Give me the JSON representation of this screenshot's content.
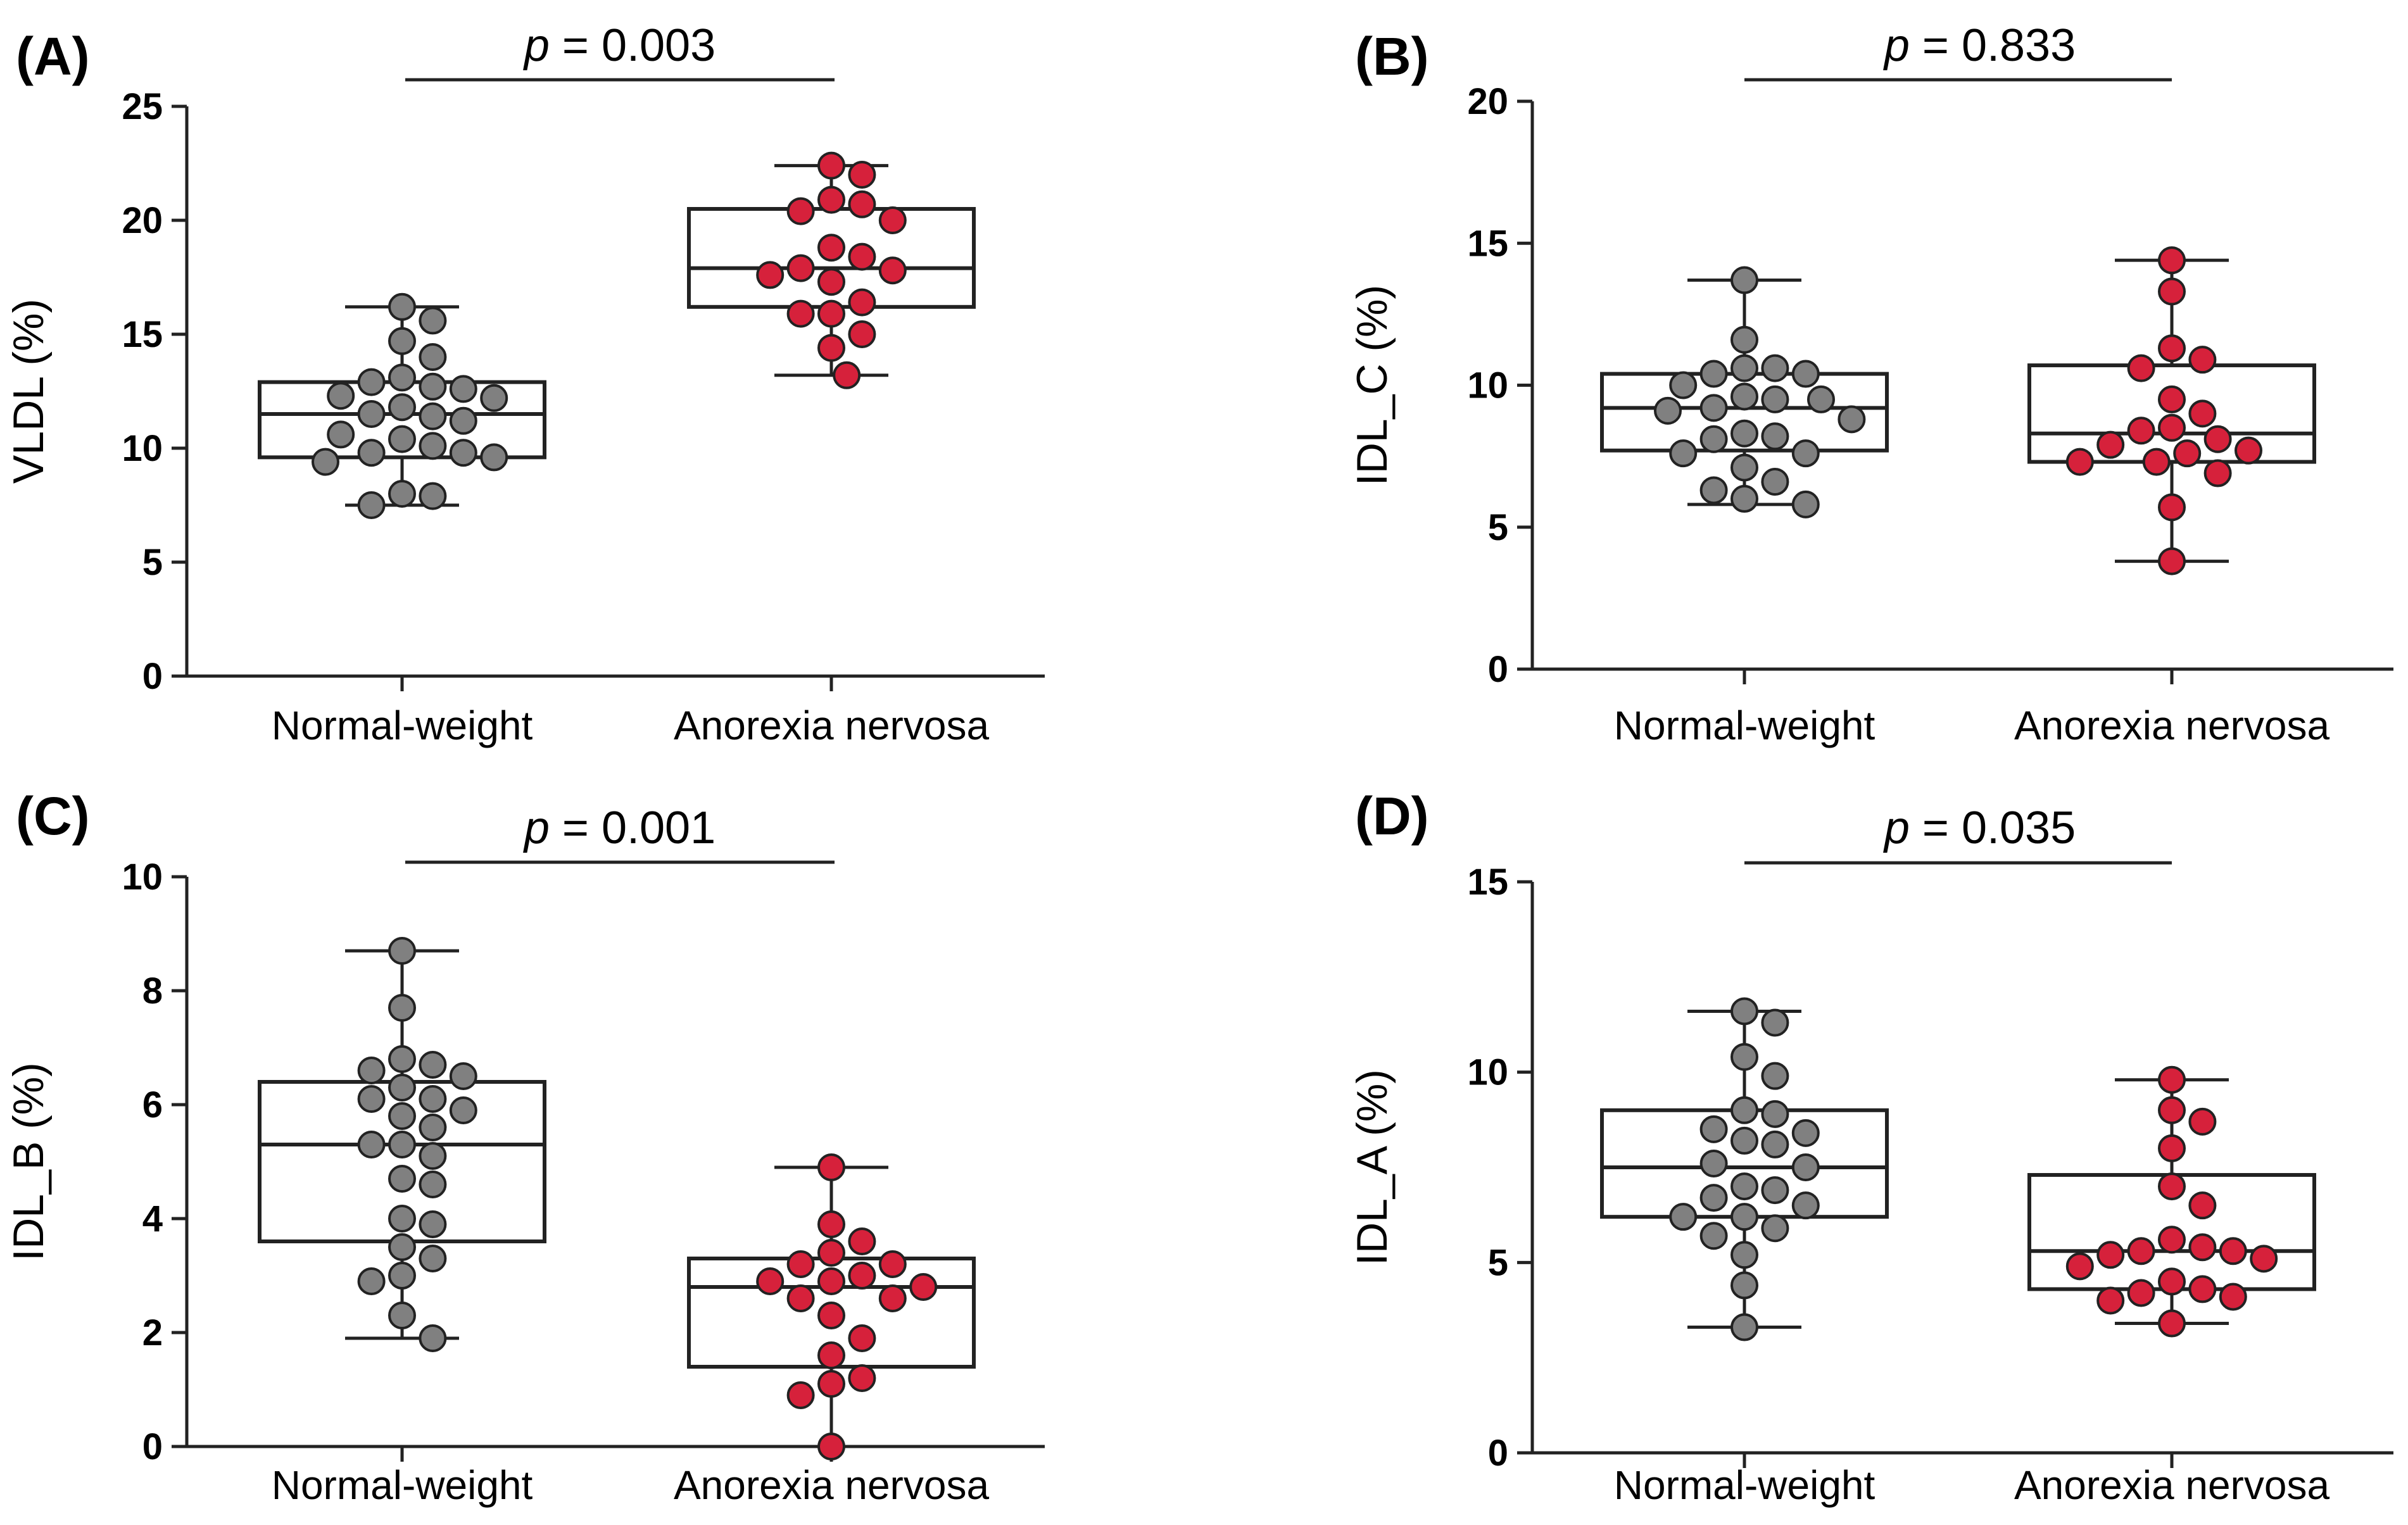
{
  "chart_data": [
    {
      "panel": "(A)",
      "type": "box",
      "ylabel": "VLDL (%)",
      "ylim": [
        0,
        25
      ],
      "yticks": [
        0,
        5,
        10,
        15,
        20,
        25
      ],
      "categories": [
        "Normal-weight",
        "Anorexia nervosa"
      ],
      "p_value": "0.003",
      "groups": [
        {
          "name": "Normal-weight",
          "color": "#808080",
          "box": {
            "min": 7.5,
            "q1": 9.6,
            "median": 11.5,
            "q3": 12.9,
            "max": 16.2
          },
          "points": [
            16.2,
            15.6,
            14.7,
            14.0,
            13.1,
            12.9,
            12.7,
            12.6,
            12.3,
            12.2,
            11.8,
            11.5,
            11.4,
            11.2,
            10.6,
            10.4,
            10.1,
            9.8,
            9.8,
            9.6,
            9.4,
            8.0,
            7.9,
            7.5
          ]
        },
        {
          "name": "Anorexia nervosa",
          "color": "#d6213b",
          "box": {
            "min": 13.2,
            "q1": 16.2,
            "median": 17.9,
            "q3": 20.5,
            "max": 22.4
          },
          "points": [
            22.4,
            22.0,
            20.9,
            20.7,
            20.4,
            20.0,
            18.8,
            18.4,
            17.9,
            17.8,
            17.6,
            17.3,
            16.4,
            15.9,
            15.9,
            15.0,
            14.4,
            13.2
          ]
        }
      ]
    },
    {
      "panel": "(B)",
      "type": "box",
      "ylabel": "IDL_C (%)",
      "ylim": [
        0,
        20
      ],
      "yticks": [
        0,
        5,
        10,
        15,
        20
      ],
      "categories": [
        "Normal-weight",
        "Anorexia nervosa"
      ],
      "p_value": "0.833",
      "groups": [
        {
          "name": "Normal-weight",
          "color": "#808080",
          "box": {
            "min": 5.8,
            "q1": 7.7,
            "median": 9.2,
            "q3": 10.4,
            "max": 13.7
          },
          "points": [
            13.7,
            11.6,
            10.6,
            10.6,
            10.4,
            10.4,
            10.0,
            9.6,
            9.5,
            9.5,
            9.2,
            9.1,
            8.8,
            8.3,
            8.2,
            8.1,
            7.6,
            7.6,
            7.1,
            6.6,
            6.3,
            6.0,
            5.8
          ]
        },
        {
          "name": "Anorexia nervosa",
          "color": "#d6213b",
          "box": {
            "min": 3.8,
            "q1": 7.3,
            "median": 8.3,
            "q3": 10.7,
            "max": 14.4
          },
          "points": [
            14.4,
            13.3,
            11.3,
            10.9,
            10.6,
            9.5,
            9.0,
            8.5,
            8.4,
            8.1,
            7.9,
            7.7,
            7.6,
            7.3,
            7.3,
            6.9,
            5.7,
            3.8
          ]
        }
      ]
    },
    {
      "panel": "(C)",
      "type": "box",
      "ylabel": "IDL_B (%)",
      "ylim": [
        0,
        10
      ],
      "yticks": [
        0,
        2,
        4,
        6,
        8,
        10
      ],
      "categories": [
        "Normal-weight",
        "Anorexia nervosa"
      ],
      "p_value": "0.001",
      "groups": [
        {
          "name": "Normal-weight",
          "color": "#808080",
          "box": {
            "min": 1.9,
            "q1": 3.6,
            "median": 5.3,
            "q3": 6.4,
            "max": 8.7
          },
          "points": [
            8.7,
            7.7,
            6.8,
            6.7,
            6.6,
            6.5,
            6.3,
            6.1,
            6.1,
            5.9,
            5.8,
            5.6,
            5.3,
            5.3,
            5.1,
            4.7,
            4.6,
            4.0,
            3.9,
            3.5,
            3.3,
            3.0,
            2.9,
            2.3,
            1.9
          ]
        },
        {
          "name": "Anorexia nervosa",
          "color": "#d6213b",
          "box": {
            "min": 0.0,
            "q1": 1.4,
            "median": 2.8,
            "q3": 3.3,
            "max": 4.9
          },
          "points": [
            4.9,
            3.9,
            3.6,
            3.4,
            3.2,
            3.2,
            3.0,
            2.9,
            2.9,
            2.8,
            2.6,
            2.6,
            2.3,
            1.9,
            1.6,
            1.2,
            1.1,
            0.9,
            0.0
          ]
        }
      ]
    },
    {
      "panel": "(D)",
      "type": "box",
      "ylabel": "IDL_A (%)",
      "ylim": [
        0,
        15
      ],
      "yticks": [
        0,
        5,
        10,
        15
      ],
      "categories": [
        "Normal-weight",
        "Anorexia nervosa"
      ],
      "p_value": "0.035",
      "groups": [
        {
          "name": "Normal-weight",
          "color": "#808080",
          "box": {
            "min": 3.3,
            "q1": 6.2,
            "median": 7.5,
            "q3": 9.0,
            "max": 11.6
          },
          "points": [
            11.6,
            11.3,
            10.4,
            9.9,
            9.0,
            8.9,
            8.5,
            8.4,
            8.2,
            8.1,
            7.6,
            7.5,
            7.0,
            6.9,
            6.7,
            6.5,
            6.2,
            6.2,
            5.9,
            5.7,
            5.2,
            4.4,
            3.3
          ]
        },
        {
          "name": "Anorexia nervosa",
          "color": "#d6213b",
          "box": {
            "min": 3.4,
            "q1": 4.3,
            "median": 5.3,
            "q3": 7.3,
            "max": 9.8
          },
          "points": [
            9.8,
            9.0,
            8.7,
            8.0,
            7.0,
            6.5,
            5.6,
            5.4,
            5.3,
            5.3,
            5.2,
            5.1,
            4.9,
            4.5,
            4.3,
            4.2,
            4.1,
            4.0,
            3.4
          ]
        }
      ]
    }
  ]
}
